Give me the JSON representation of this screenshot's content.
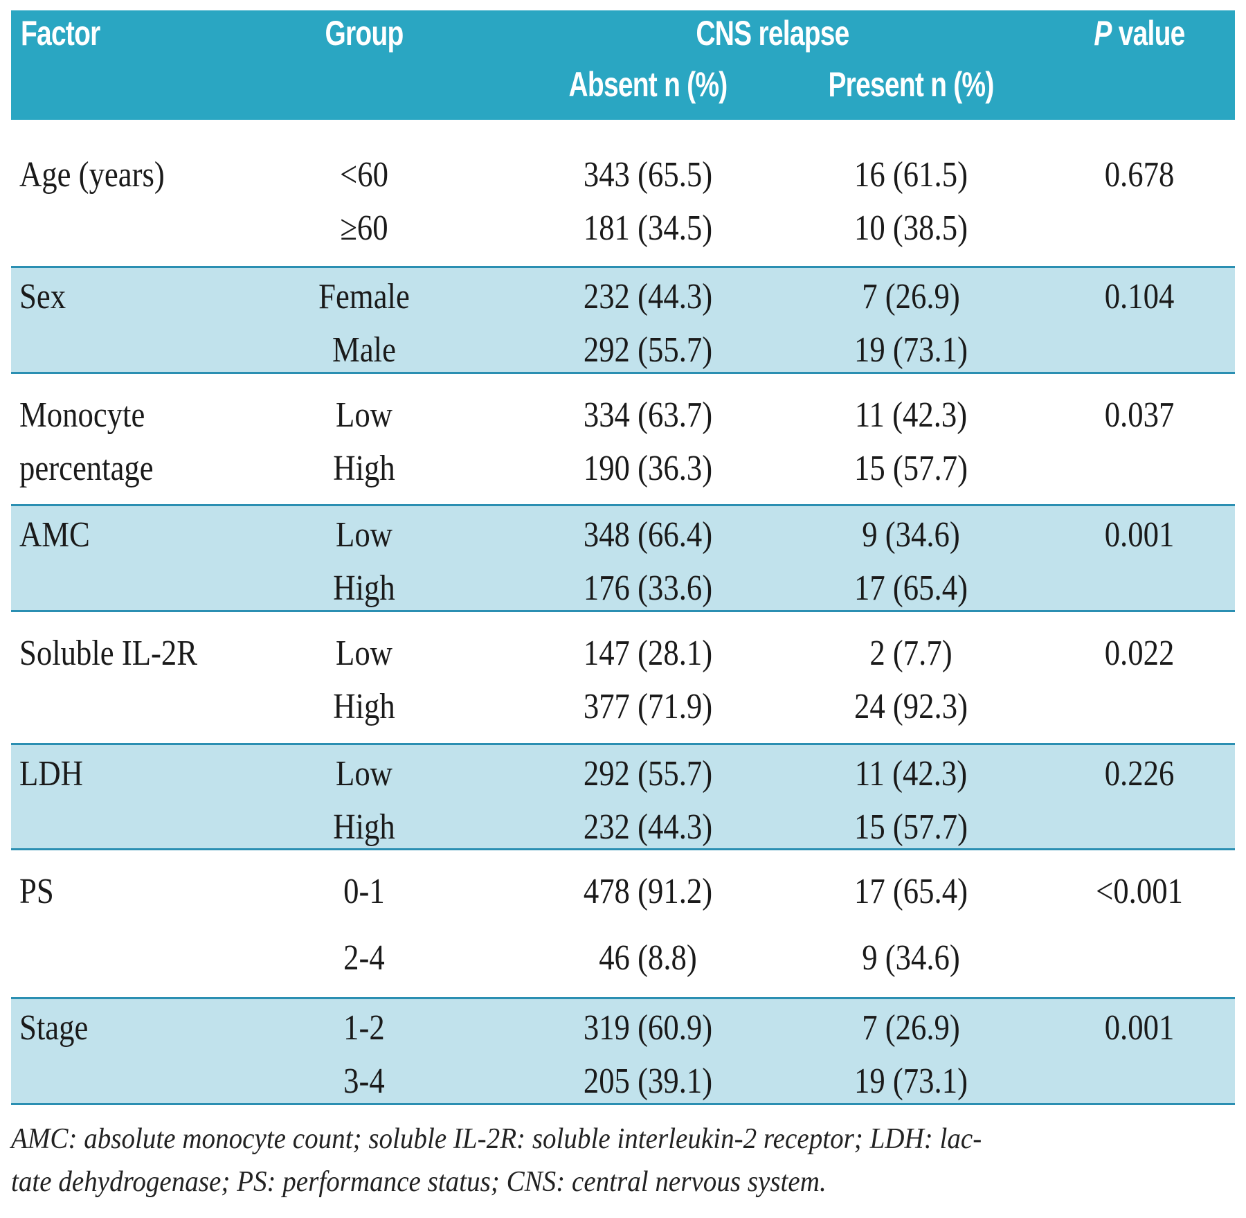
{
  "header": {
    "factor": "Factor",
    "group": "Group",
    "cns_relapse": "CNS relapse",
    "absent": "Absent n (%)",
    "present": "Present n (%)",
    "p_value": "P value"
  },
  "rows": [
    {
      "factor": "Age (years)",
      "factor2": "",
      "groups": [
        "<60",
        "≥60"
      ],
      "absent": [
        "343 (65.5)",
        "181 (34.5)"
      ],
      "present": [
        "16 (61.5)",
        "10 (38.5)"
      ],
      "p": "0.678"
    },
    {
      "factor": "Sex",
      "factor2": "",
      "groups": [
        "Female",
        "Male"
      ],
      "absent": [
        "232 (44.3)",
        "292 (55.7)"
      ],
      "present": [
        "7 (26.9)",
        "19 (73.1)"
      ],
      "p": "0.104"
    },
    {
      "factor": "Monocyte",
      "factor2": "percentage",
      "groups": [
        "Low",
        "High"
      ],
      "absent": [
        "334 (63.7)",
        "190 (36.3)"
      ],
      "present": [
        "11 (42.3)",
        "15 (57.7)"
      ],
      "p": "0.037"
    },
    {
      "factor": "AMC",
      "factor2": "",
      "groups": [
        "Low",
        "High"
      ],
      "absent": [
        "348 (66.4)",
        "176 (33.6)"
      ],
      "present": [
        "9 (34.6)",
        "17 (65.4)"
      ],
      "p": "0.001"
    },
    {
      "factor": "Soluble IL-2R",
      "factor2": "",
      "groups": [
        "Low",
        "High"
      ],
      "absent": [
        "147 (28.1)",
        "377 (71.9)"
      ],
      "present": [
        "2 (7.7)",
        "24 (92.3)"
      ],
      "p": "0.022"
    },
    {
      "factor": "LDH",
      "factor2": "",
      "groups": [
        "Low",
        "High"
      ],
      "absent": [
        "292 (55.7)",
        "232 (44.3)"
      ],
      "present": [
        "11 (42.3)",
        "15 (57.7)"
      ],
      "p": "0.226"
    },
    {
      "factor": "PS",
      "factor2": "",
      "groups": [
        "0-1",
        "2-4"
      ],
      "absent": [
        "478 (91.2)",
        "46 (8.8)"
      ],
      "present": [
        "17 (65.4)",
        "9 (34.6)"
      ],
      "p": "<0.001"
    },
    {
      "factor": "Stage",
      "factor2": "",
      "groups": [
        "1-2",
        "3-4"
      ],
      "absent": [
        "319 (60.9)",
        "205 (39.1)"
      ],
      "present": [
        "7 (26.9)",
        "19 (73.1)"
      ],
      "p": "0.001"
    }
  ],
  "footnote": {
    "line1": "AMC: absolute monocyte count; soluble IL-2R: soluble interleukin-2 receptor; LDH: lac-",
    "line2": "tate dehydrogenase; PS: performance status; CNS: central nervous system."
  },
  "colors": {
    "header": "#2aa6c2",
    "band": "#c1e2ec",
    "rule": "#2b8fb2"
  }
}
